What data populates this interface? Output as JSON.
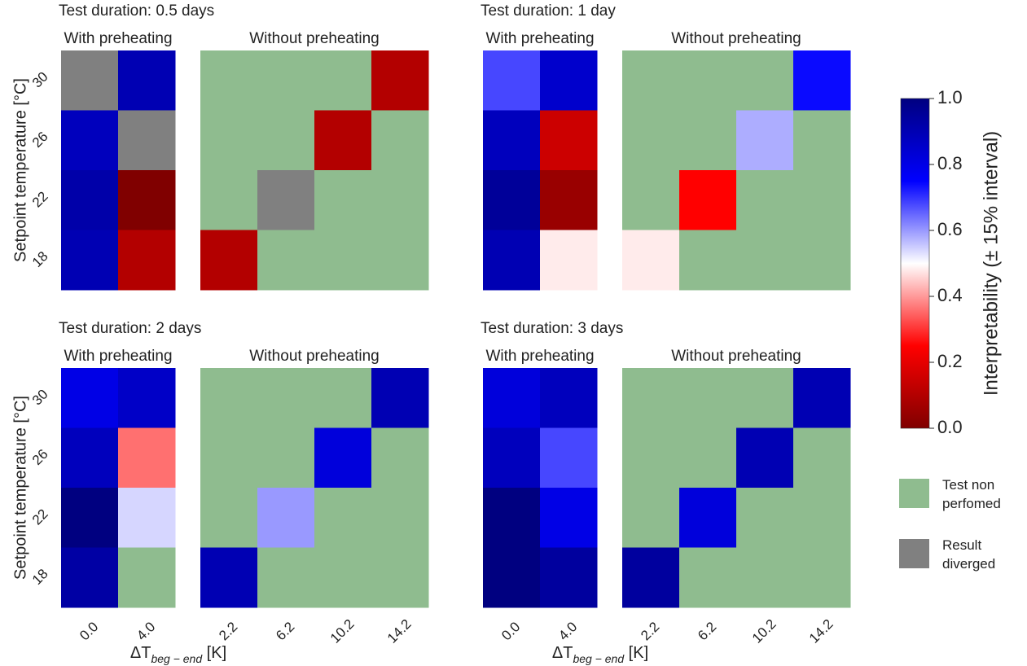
{
  "chart_data": {
    "type": "heatmap",
    "y_label": "Setpoint temperature [°C]",
    "y_categories": [
      "30",
      "26",
      "22",
      "18"
    ],
    "x_label_prefix": "ΔT",
    "x_label_sub": "beg − end",
    "x_label_suffix": " [K]",
    "preheat_x_categories": [
      "0.0",
      "4.0"
    ],
    "nopreheat_x_categories": [
      "2.2",
      "6.2",
      "10.2",
      "14.2"
    ],
    "with_label": "With preheating",
    "without_label": "Without preheating",
    "colorbar": {
      "label": "Interpretability (± 15% interval)",
      "range": [
        0.0,
        1.0
      ],
      "ticks": [
        "0.0",
        "0.2",
        "0.4",
        "0.6",
        "0.8",
        "1.0"
      ],
      "colormap": "seismic_r",
      "colors": {
        "low": "#800000",
        "mid_low": "#ff0000",
        "mid": "#ffffff",
        "mid_high": "#0000ff",
        "high": "#000080"
      }
    },
    "legend": [
      {
        "label_line1": "Test non",
        "label_line2": "perfomed",
        "color": "#8fbc8f"
      },
      {
        "label_line1": "Result",
        "label_line2": "diverged",
        "color": "#808080"
      }
    ],
    "panels": [
      {
        "title": "Test duration: 0.5 days",
        "with_preheating": [
          [
            -1,
            0.9
          ],
          [
            0.88,
            -1
          ],
          [
            0.92,
            0.0
          ],
          [
            0.9,
            0.1
          ]
        ],
        "without_preheating": [
          [
            null,
            null,
            null,
            0.1
          ],
          [
            null,
            null,
            0.1,
            null
          ],
          [
            null,
            -1,
            null,
            null
          ],
          [
            0.1,
            null,
            null,
            null
          ]
        ]
      },
      {
        "title": "Test duration: 1 day",
        "with_preheating": [
          [
            0.68,
            0.85
          ],
          [
            0.88,
            0.15
          ],
          [
            0.95,
            0.05
          ],
          [
            0.9,
            0.48
          ]
        ],
        "without_preheating": [
          [
            null,
            null,
            null,
            0.74
          ],
          [
            null,
            null,
            0.58,
            null
          ],
          [
            null,
            0.25,
            null,
            null
          ],
          [
            0.48,
            null,
            null,
            null
          ]
        ]
      },
      {
        "title": "Test duration: 2 days",
        "with_preheating": [
          [
            0.8,
            0.86
          ],
          [
            0.88,
            0.36
          ],
          [
            1.0,
            0.54
          ],
          [
            0.93,
            null
          ]
        ],
        "without_preheating": [
          [
            null,
            null,
            null,
            0.9
          ],
          [
            null,
            null,
            0.82,
            null
          ],
          [
            null,
            0.6,
            null,
            null
          ],
          [
            0.9,
            null,
            null,
            null
          ]
        ]
      },
      {
        "title": "Test duration: 3 days",
        "with_preheating": [
          [
            0.82,
            0.88
          ],
          [
            0.88,
            0.68
          ],
          [
            1.0,
            0.8
          ],
          [
            1.0,
            0.94
          ]
        ],
        "without_preheating": [
          [
            null,
            null,
            null,
            0.9
          ],
          [
            null,
            null,
            0.9,
            null
          ],
          [
            null,
            0.82,
            null,
            null
          ],
          [
            0.94,
            null,
            null,
            null
          ]
        ]
      }
    ]
  }
}
